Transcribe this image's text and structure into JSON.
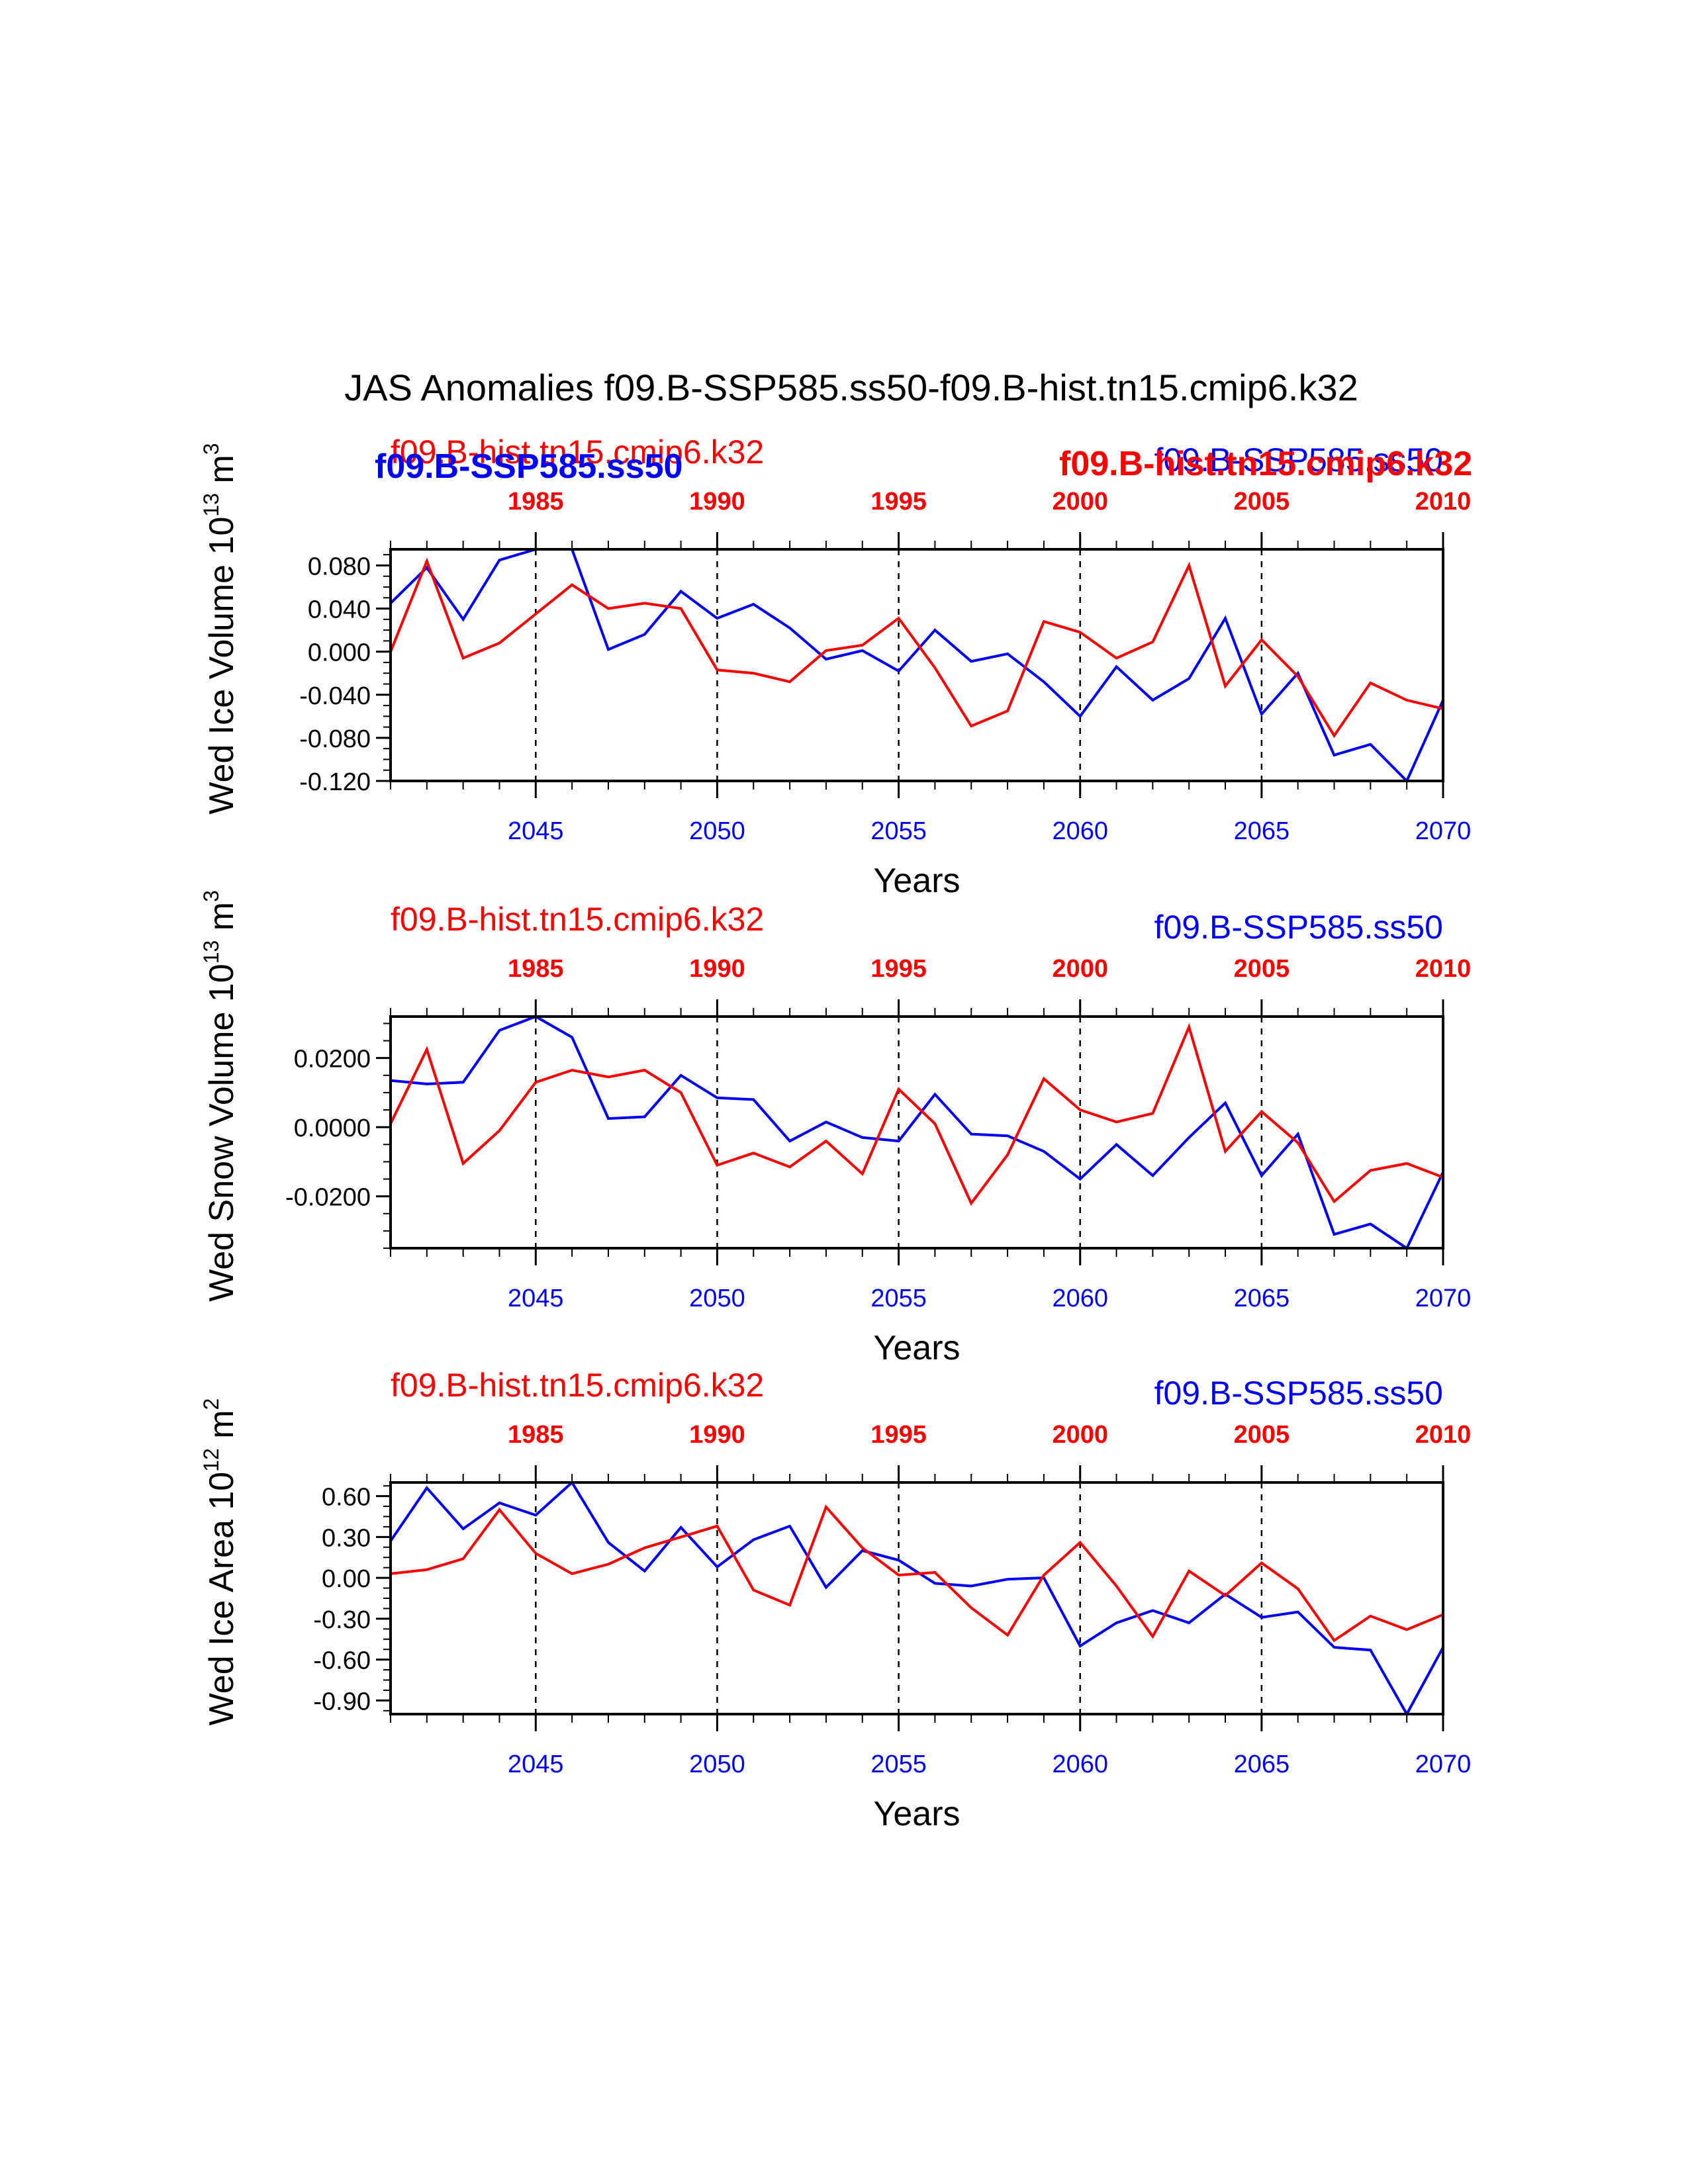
{
  "title": "JAS Anomalies f09.B-SSP585.ss50-f09.B-hist.tn15.cmip6.k32",
  "overlay_labels": {
    "blue_bold": "f09.B-SSP585.ss50",
    "red_bold": "f09.B-hist.tn15.cmip6.k32"
  },
  "colors": {
    "ssp585": "#0000ff",
    "hist": "#ff0000",
    "axes": "#000000"
  },
  "chart_data": [
    {
      "type": "line",
      "ylabel": "Wed Ice Volume 10",
      "ylabel_sup": "13",
      "ylabel_unit": " m",
      "ylabel_unit_sup": "3",
      "xlabel": "Years",
      "xlim_bottom": [
        2041,
        2070
      ],
      "xlim_top": [
        1981,
        2010
      ],
      "ylim": [
        -0.12,
        0.095
      ],
      "ytick_values": [
        0.08,
        0.04,
        0.0,
        -0.04,
        -0.08,
        -0.12
      ],
      "ytick_labels": [
        "0.080",
        "0.040",
        "0.000",
        "-0.040",
        "-0.080",
        "-0.120"
      ],
      "xticks_bottom": [
        2045,
        2050,
        2055,
        2060,
        2065,
        2070
      ],
      "xtick_labels_bottom": [
        "2045",
        "2050",
        "2055",
        "2060",
        "2065",
        "2070"
      ],
      "xticks_top": [
        1985,
        1990,
        1995,
        2000,
        2005,
        2010
      ],
      "xtick_labels_top": [
        "1985",
        "1990",
        "1995",
        "2000",
        "2005",
        "2010"
      ],
      "grid_x": "dashed verticals at 2045, 2050, 2055, 2060, 2065",
      "top_legend_left": "f09.B-hist.tn15.cmip6.k32",
      "top_legend_right": "f09.B-SSP585.ss50",
      "series": [
        {
          "name": "f09.B-SSP585.ss50",
          "axis": "bottom",
          "x": [
            2041,
            2042,
            2043,
            2044,
            2045,
            2046,
            2047,
            2048,
            2049,
            2050,
            2051,
            2052,
            2053,
            2054,
            2055,
            2056,
            2057,
            2058,
            2059,
            2060,
            2061,
            2062,
            2063,
            2064,
            2065,
            2066,
            2067,
            2068,
            2069,
            2070
          ],
          "values": [
            0.045,
            0.078,
            0.03,
            0.085,
            0.095,
            0.095,
            0.002,
            0.016,
            0.056,
            0.031,
            0.044,
            0.022,
            -0.007,
            0.001,
            -0.018,
            0.02,
            -0.009,
            -0.002,
            -0.028,
            -0.06,
            -0.014,
            -0.045,
            -0.025,
            0.031,
            -0.058,
            -0.02,
            -0.096,
            -0.086,
            -0.12,
            -0.045
          ]
        },
        {
          "name": "f09.B-hist.tn15.cmip6.k32",
          "axis": "top",
          "x": [
            1981,
            1982,
            1983,
            1984,
            1985,
            1986,
            1987,
            1988,
            1989,
            1990,
            1991,
            1992,
            1993,
            1994,
            1995,
            1996,
            1997,
            1998,
            1999,
            2000,
            2001,
            2002,
            2003,
            2004,
            2005,
            2006,
            2007,
            2008,
            2009,
            2010
          ],
          "values": [
            0.0,
            0.084,
            -0.006,
            0.008,
            0.035,
            0.062,
            0.04,
            0.045,
            0.04,
            -0.017,
            -0.02,
            -0.028,
            0.001,
            0.006,
            0.031,
            -0.015,
            -0.069,
            -0.055,
            0.028,
            0.018,
            -0.006,
            0.009,
            0.08,
            -0.032,
            0.011,
            -0.023,
            -0.078,
            -0.029,
            -0.045,
            -0.053
          ]
        }
      ]
    },
    {
      "type": "line",
      "ylabel": "Wed Snow Volume 10",
      "ylabel_sup": "13",
      "ylabel_unit": " m",
      "ylabel_unit_sup": "3",
      "xlabel": "Years",
      "xlim_bottom": [
        2041,
        2070
      ],
      "xlim_top": [
        1981,
        2010
      ],
      "ylim": [
        -0.035,
        0.032
      ],
      "ytick_values": [
        0.02,
        0.0,
        -0.02
      ],
      "ytick_labels": [
        "0.0200",
        "0.0000",
        "-0.0200"
      ],
      "xticks_bottom": [
        2045,
        2050,
        2055,
        2060,
        2065,
        2070
      ],
      "xtick_labels_bottom": [
        "2045",
        "2050",
        "2055",
        "2060",
        "2065",
        "2070"
      ],
      "xticks_top": [
        1985,
        1990,
        1995,
        2000,
        2005,
        2010
      ],
      "xtick_labels_top": [
        "1985",
        "1990",
        "1995",
        "2000",
        "2005",
        "2010"
      ],
      "grid_x": "dashed verticals at 2045, 2050, 2055, 2060, 2065",
      "top_legend_left": "f09.B-hist.tn15.cmip6.k32",
      "top_legend_right": "f09.B-SSP585.ss50",
      "series": [
        {
          "name": "f09.B-SSP585.ss50",
          "axis": "bottom",
          "x": [
            2041,
            2042,
            2043,
            2044,
            2045,
            2046,
            2047,
            2048,
            2049,
            2050,
            2051,
            2052,
            2053,
            2054,
            2055,
            2056,
            2057,
            2058,
            2059,
            2060,
            2061,
            2062,
            2063,
            2064,
            2065,
            2066,
            2067,
            2068,
            2069,
            2070
          ],
          "values": [
            0.0135,
            0.0125,
            0.013,
            0.028,
            0.032,
            0.026,
            0.0025,
            0.003,
            0.015,
            0.0085,
            0.008,
            -0.004,
            0.0015,
            -0.003,
            -0.004,
            0.0095,
            -0.002,
            -0.0025,
            -0.007,
            -0.015,
            -0.005,
            -0.014,
            -0.003,
            0.007,
            -0.014,
            -0.002,
            -0.031,
            -0.028,
            -0.035,
            -0.013
          ]
        },
        {
          "name": "f09.B-hist.tn15.cmip6.k32",
          "axis": "top",
          "x": [
            1981,
            1982,
            1983,
            1984,
            1985,
            1986,
            1987,
            1988,
            1989,
            1990,
            1991,
            1992,
            1993,
            1994,
            1995,
            1996,
            1997,
            1998,
            1999,
            2000,
            2001,
            2002,
            2003,
            2004,
            2005,
            2006,
            2007,
            2008,
            2009,
            2010
          ],
          "values": [
            0.001,
            0.0225,
            -0.0105,
            -0.001,
            0.013,
            0.0165,
            0.0145,
            0.0165,
            0.01,
            -0.011,
            -0.0075,
            -0.0115,
            -0.004,
            -0.0135,
            0.011,
            0.001,
            -0.022,
            -0.008,
            0.014,
            0.005,
            0.0015,
            0.004,
            0.029,
            -0.007,
            0.0045,
            -0.0045,
            -0.0215,
            -0.0125,
            -0.0105,
            -0.0145
          ]
        }
      ]
    },
    {
      "type": "line",
      "ylabel": "Wed Ice Area 10",
      "ylabel_sup": "12",
      "ylabel_unit": " m",
      "ylabel_unit_sup": "2",
      "xlabel": "Years",
      "xlim_bottom": [
        2041,
        2070
      ],
      "xlim_top": [
        1981,
        2010
      ],
      "ylim": [
        -1.0,
        0.7
      ],
      "ytick_values": [
        0.6,
        0.3,
        0.0,
        -0.3,
        -0.6,
        -0.9
      ],
      "ytick_labels": [
        "0.60",
        "0.30",
        "0.00",
        "-0.30",
        "-0.60",
        "-0.90"
      ],
      "xticks_bottom": [
        2045,
        2050,
        2055,
        2060,
        2065,
        2070
      ],
      "xtick_labels_bottom": [
        "2045",
        "2050",
        "2055",
        "2060",
        "2065",
        "2070"
      ],
      "xticks_top": [
        1985,
        1990,
        1995,
        2000,
        2005,
        2010
      ],
      "xtick_labels_top": [
        "1985",
        "1990",
        "1995",
        "2000",
        "2005",
        "2010"
      ],
      "grid_x": "dashed verticals at 2045, 2050, 2055, 2060, 2065",
      "top_legend_left": "f09.B-hist.tn15.cmip6.k32",
      "top_legend_right": "f09.B-SSP585.ss50",
      "series": [
        {
          "name": "f09.B-SSP585.ss50",
          "axis": "bottom",
          "x": [
            2041,
            2042,
            2043,
            2044,
            2045,
            2046,
            2047,
            2048,
            2049,
            2050,
            2051,
            2052,
            2053,
            2054,
            2055,
            2056,
            2057,
            2058,
            2059,
            2060,
            2061,
            2062,
            2063,
            2064,
            2065,
            2066,
            2067,
            2068,
            2069,
            2070
          ],
          "values": [
            0.27,
            0.66,
            0.36,
            0.55,
            0.46,
            0.7,
            0.26,
            0.05,
            0.37,
            0.08,
            0.28,
            0.38,
            -0.07,
            0.2,
            0.13,
            -0.04,
            -0.06,
            -0.01,
            0.0,
            -0.5,
            -0.33,
            -0.24,
            -0.33,
            -0.12,
            -0.29,
            -0.25,
            -0.51,
            -0.53,
            -1.0,
            -0.51
          ]
        },
        {
          "name": "f09.B-hist.tn15.cmip6.k32",
          "axis": "top",
          "x": [
            1981,
            1982,
            1983,
            1984,
            1985,
            1986,
            1987,
            1988,
            1989,
            1990,
            1991,
            1992,
            1993,
            1994,
            1995,
            1996,
            1997,
            1998,
            1999,
            2000,
            2001,
            2002,
            2003,
            2004,
            2005,
            2006,
            2007,
            2008,
            2009,
            2010
          ],
          "values": [
            0.03,
            0.06,
            0.14,
            0.5,
            0.18,
            0.03,
            0.1,
            0.22,
            0.3,
            0.38,
            -0.09,
            -0.2,
            0.52,
            0.22,
            0.02,
            0.04,
            -0.22,
            -0.42,
            0.02,
            0.26,
            -0.06,
            -0.43,
            0.05,
            -0.13,
            0.11,
            -0.08,
            -0.46,
            -0.28,
            -0.38,
            -0.27
          ]
        }
      ]
    }
  ]
}
